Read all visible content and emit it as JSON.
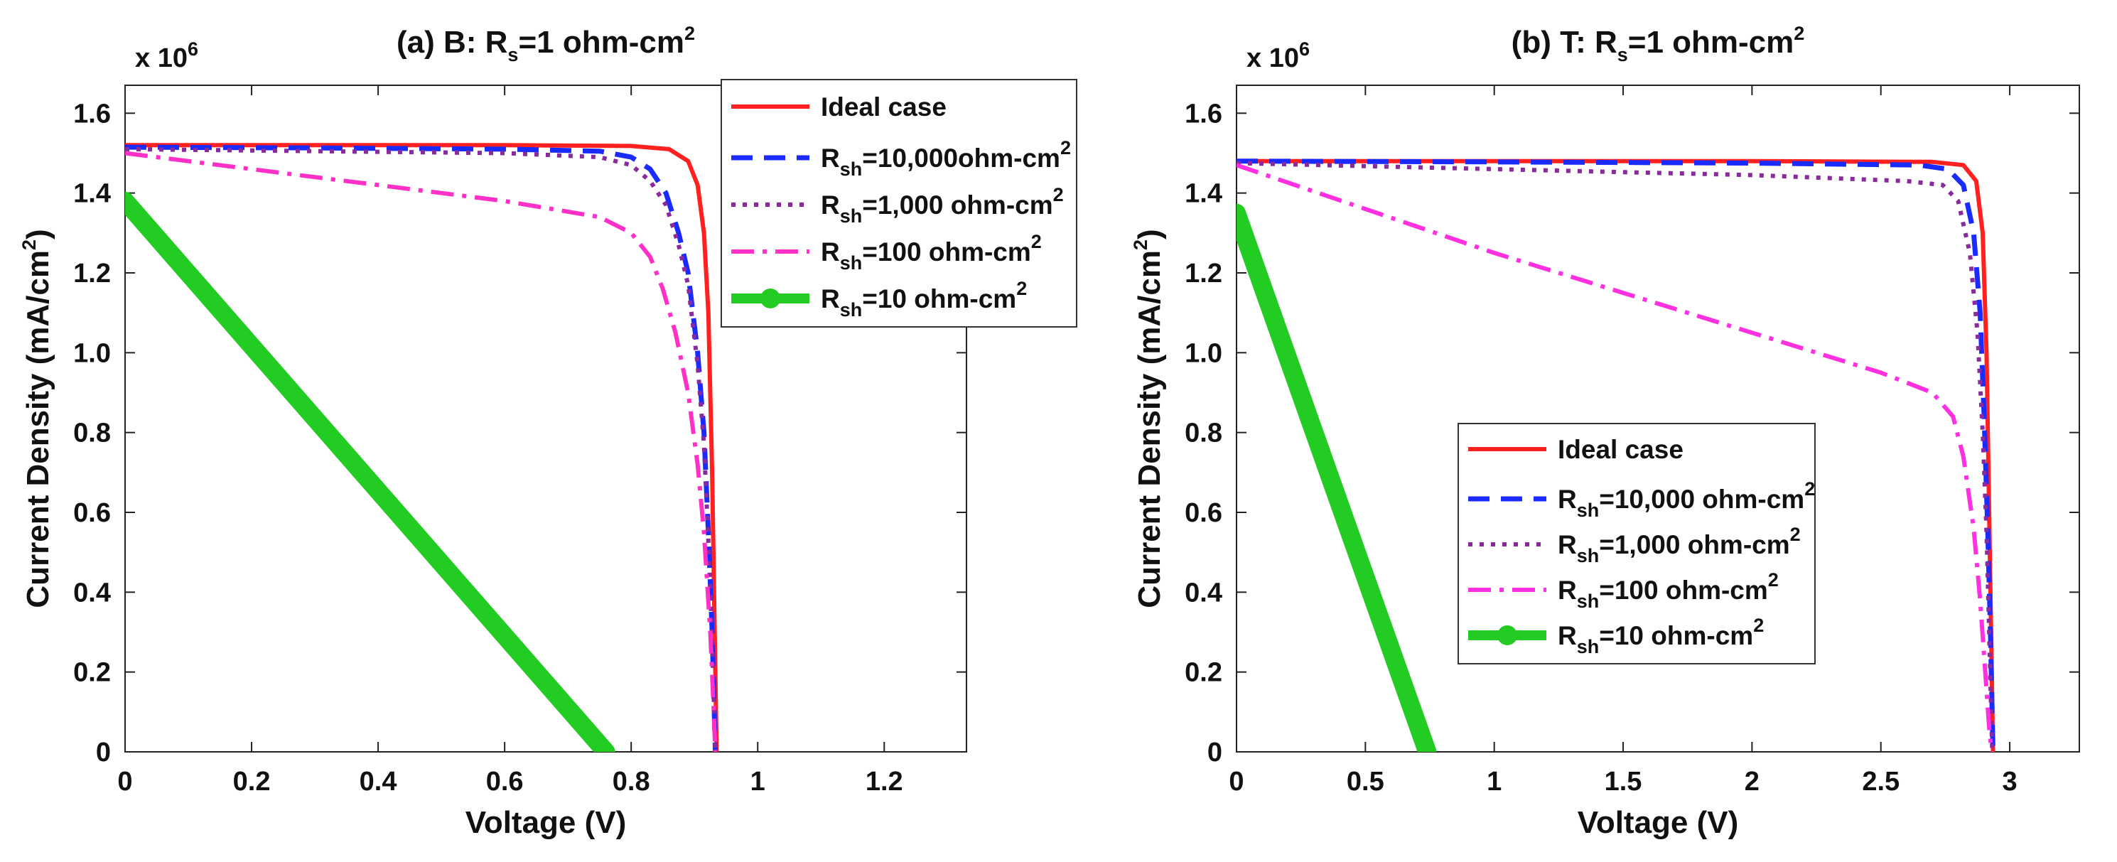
{
  "chart_data": [
    {
      "type": "line",
      "title": {
        "main": "(a) B: R",
        "sub": "s",
        "rest": "=1 ohm-cm",
        "sup": "2"
      },
      "xlabel": "Voltage (V)",
      "ylabel": "Current Density (mA/cm",
      "ylabel_sup": "2",
      "ylabel_close": ")",
      "multiplier": {
        "base": "x 10",
        "exp": "6"
      },
      "xlim": [
        0,
        1.33
      ],
      "ylim": [
        0,
        1.67
      ],
      "xticks": [
        0,
        0.2,
        0.4,
        0.6,
        0.8,
        1,
        1.2
      ],
      "xtick_labels": [
        "0",
        "0.2",
        "0.4",
        "0.6",
        "0.8",
        "1",
        "1.2"
      ],
      "yticks": [
        0,
        0.2,
        0.4,
        0.6,
        0.8,
        1.0,
        1.2,
        1.4,
        1.6
      ],
      "ytick_labels": [
        "0",
        "0.2",
        "0.4",
        "0.6",
        "0.8",
        "1.0",
        "1.2",
        "1.4",
        "1.6"
      ],
      "legend_position": "top-right",
      "series": [
        {
          "name": "Ideal case",
          "color": "#ff2020",
          "style": "solid",
          "x": [
            0,
            0.3,
            0.6,
            0.8,
            0.86,
            0.89,
            0.905,
            0.915,
            0.922,
            0.928,
            0.932,
            0.935
          ],
          "y": [
            1.52,
            1.52,
            1.52,
            1.518,
            1.51,
            1.48,
            1.42,
            1.3,
            1.1,
            0.7,
            0.3,
            0
          ]
        },
        {
          "name": "R_sh=10,000ohm-cm^2",
          "label": {
            "pre": "R",
            "sub": "sh",
            "mid": "=10,000ohm-cm",
            "sup": "2"
          },
          "color": "#1a2bff",
          "style": "dash",
          "x": [
            0,
            0.3,
            0.6,
            0.75,
            0.8,
            0.83,
            0.855,
            0.875,
            0.89,
            0.905,
            0.915,
            0.922,
            0.928,
            0.933
          ],
          "y": [
            1.515,
            1.513,
            1.51,
            1.505,
            1.49,
            1.46,
            1.4,
            1.3,
            1.2,
            1.0,
            0.8,
            0.55,
            0.3,
            0
          ]
        },
        {
          "name": "R_sh=1,000ohm-cm^2",
          "label": {
            "pre": "R",
            "sub": "sh",
            "mid": "=1,000 ohm-cm",
            "sup": "2"
          },
          "color": "#8a2a9e",
          "style": "dot",
          "x": [
            0,
            0.3,
            0.6,
            0.75,
            0.8,
            0.83,
            0.855,
            0.875,
            0.89,
            0.905,
            0.915,
            0.922,
            0.928,
            0.933
          ],
          "y": [
            1.51,
            1.505,
            1.5,
            1.49,
            1.47,
            1.43,
            1.37,
            1.27,
            1.17,
            0.97,
            0.77,
            0.53,
            0.28,
            0
          ]
        },
        {
          "name": "R_sh=100 ohm-cm^2",
          "label": {
            "pre": "R",
            "sub": "sh",
            "mid": "=100 ohm-cm",
            "sup": "2"
          },
          "color": "#ff30c8",
          "style": "dashdot",
          "x": [
            0,
            0.2,
            0.4,
            0.6,
            0.75,
            0.8,
            0.83,
            0.85,
            0.87,
            0.89,
            0.905,
            0.915,
            0.925,
            0.93,
            0.933
          ],
          "y": [
            1.5,
            1.46,
            1.42,
            1.38,
            1.34,
            1.3,
            1.24,
            1.16,
            1.05,
            0.9,
            0.72,
            0.55,
            0.3,
            0.12,
            0
          ]
        },
        {
          "name": "R_sh=10 ohm-cm^2",
          "label": {
            "pre": "R",
            "sub": "sh",
            "mid": "=10 ohm-cm",
            "sup": "2"
          },
          "color": "#22cc22",
          "style": "thick",
          "x": [
            0,
            0.76
          ],
          "y": [
            1.38,
            0
          ]
        }
      ]
    },
    {
      "type": "line",
      "title": {
        "main": "(b) T: R",
        "sub": "s",
        "rest": "=1 ohm-cm",
        "sup": "2"
      },
      "xlabel": "Voltage (V)",
      "ylabel": "Current Density (mA/cm",
      "ylabel_sup": "2",
      "ylabel_close": ")",
      "multiplier": {
        "base": "x 10",
        "exp": "6"
      },
      "xlim": [
        0,
        3.27
      ],
      "ylim": [
        0,
        1.67
      ],
      "xticks": [
        0,
        0.5,
        1,
        1.5,
        2,
        2.5,
        3
      ],
      "xtick_labels": [
        "0",
        "0.5",
        "1",
        "1.5",
        "2",
        "2.5",
        "3"
      ],
      "yticks": [
        0,
        0.2,
        0.4,
        0.6,
        0.8,
        1.0,
        1.2,
        1.4,
        1.6
      ],
      "ytick_labels": [
        "0",
        "0.2",
        "0.4",
        "0.6",
        "0.8",
        "1.0",
        "1.2",
        "1.4",
        "1.6"
      ],
      "legend_position": "lower-right",
      "series": [
        {
          "name": "Ideal case",
          "color": "#ff2020",
          "style": "solid",
          "x": [
            0,
            1,
            2,
            2.7,
            2.82,
            2.87,
            2.895,
            2.91,
            2.92,
            2.93,
            2.935
          ],
          "y": [
            1.48,
            1.48,
            1.48,
            1.478,
            1.47,
            1.43,
            1.3,
            1.0,
            0.6,
            0.2,
            0
          ]
        },
        {
          "name": "R_sh=10,000 ohm-cm^2",
          "label": {
            "pre": "R",
            "sub": "sh",
            "mid": "=10,000 ohm-cm",
            "sup": "2"
          },
          "color": "#1a2bff",
          "style": "dash",
          "x": [
            0,
            1,
            2,
            2.65,
            2.76,
            2.82,
            2.86,
            2.885,
            2.9,
            2.915,
            2.925,
            2.935
          ],
          "y": [
            1.48,
            1.478,
            1.475,
            1.47,
            1.46,
            1.42,
            1.3,
            1.1,
            0.85,
            0.55,
            0.3,
            0
          ]
        },
        {
          "name": "R_sh=1,000 ohm-cm^2",
          "label": {
            "pre": "R",
            "sub": "sh",
            "mid": "=1,000 ohm-cm",
            "sup": "2"
          },
          "color": "#8a2a9e",
          "style": "dot",
          "x": [
            0,
            1,
            2,
            2.6,
            2.74,
            2.8,
            2.845,
            2.875,
            2.895,
            2.91,
            2.92,
            2.932
          ],
          "y": [
            1.475,
            1.46,
            1.445,
            1.43,
            1.42,
            1.38,
            1.25,
            1.05,
            0.8,
            0.55,
            0.3,
            0
          ]
        },
        {
          "name": "R_sh=100 ohm-cm^2",
          "label": {
            "pre": "R",
            "sub": "sh",
            "mid": "=100 ohm-cm",
            "sup": "2"
          },
          "color": "#ff30e0",
          "style": "dashdot",
          "x": [
            0,
            0.5,
            1,
            1.5,
            2,
            2.5,
            2.7,
            2.78,
            2.82,
            2.86,
            2.885,
            2.905,
            2.92,
            2.93
          ],
          "y": [
            1.47,
            1.36,
            1.25,
            1.15,
            1.05,
            0.95,
            0.9,
            0.84,
            0.74,
            0.56,
            0.38,
            0.2,
            0.06,
            0
          ]
        },
        {
          "name": "R_sh=10 ohm-cm^2",
          "label": {
            "pre": "R",
            "sub": "sh",
            "mid": "=10 ohm-cm",
            "sup": "2"
          },
          "color": "#22cc22",
          "style": "thick",
          "x": [
            0,
            0.74
          ],
          "y": [
            1.35,
            0
          ]
        }
      ]
    }
  ]
}
